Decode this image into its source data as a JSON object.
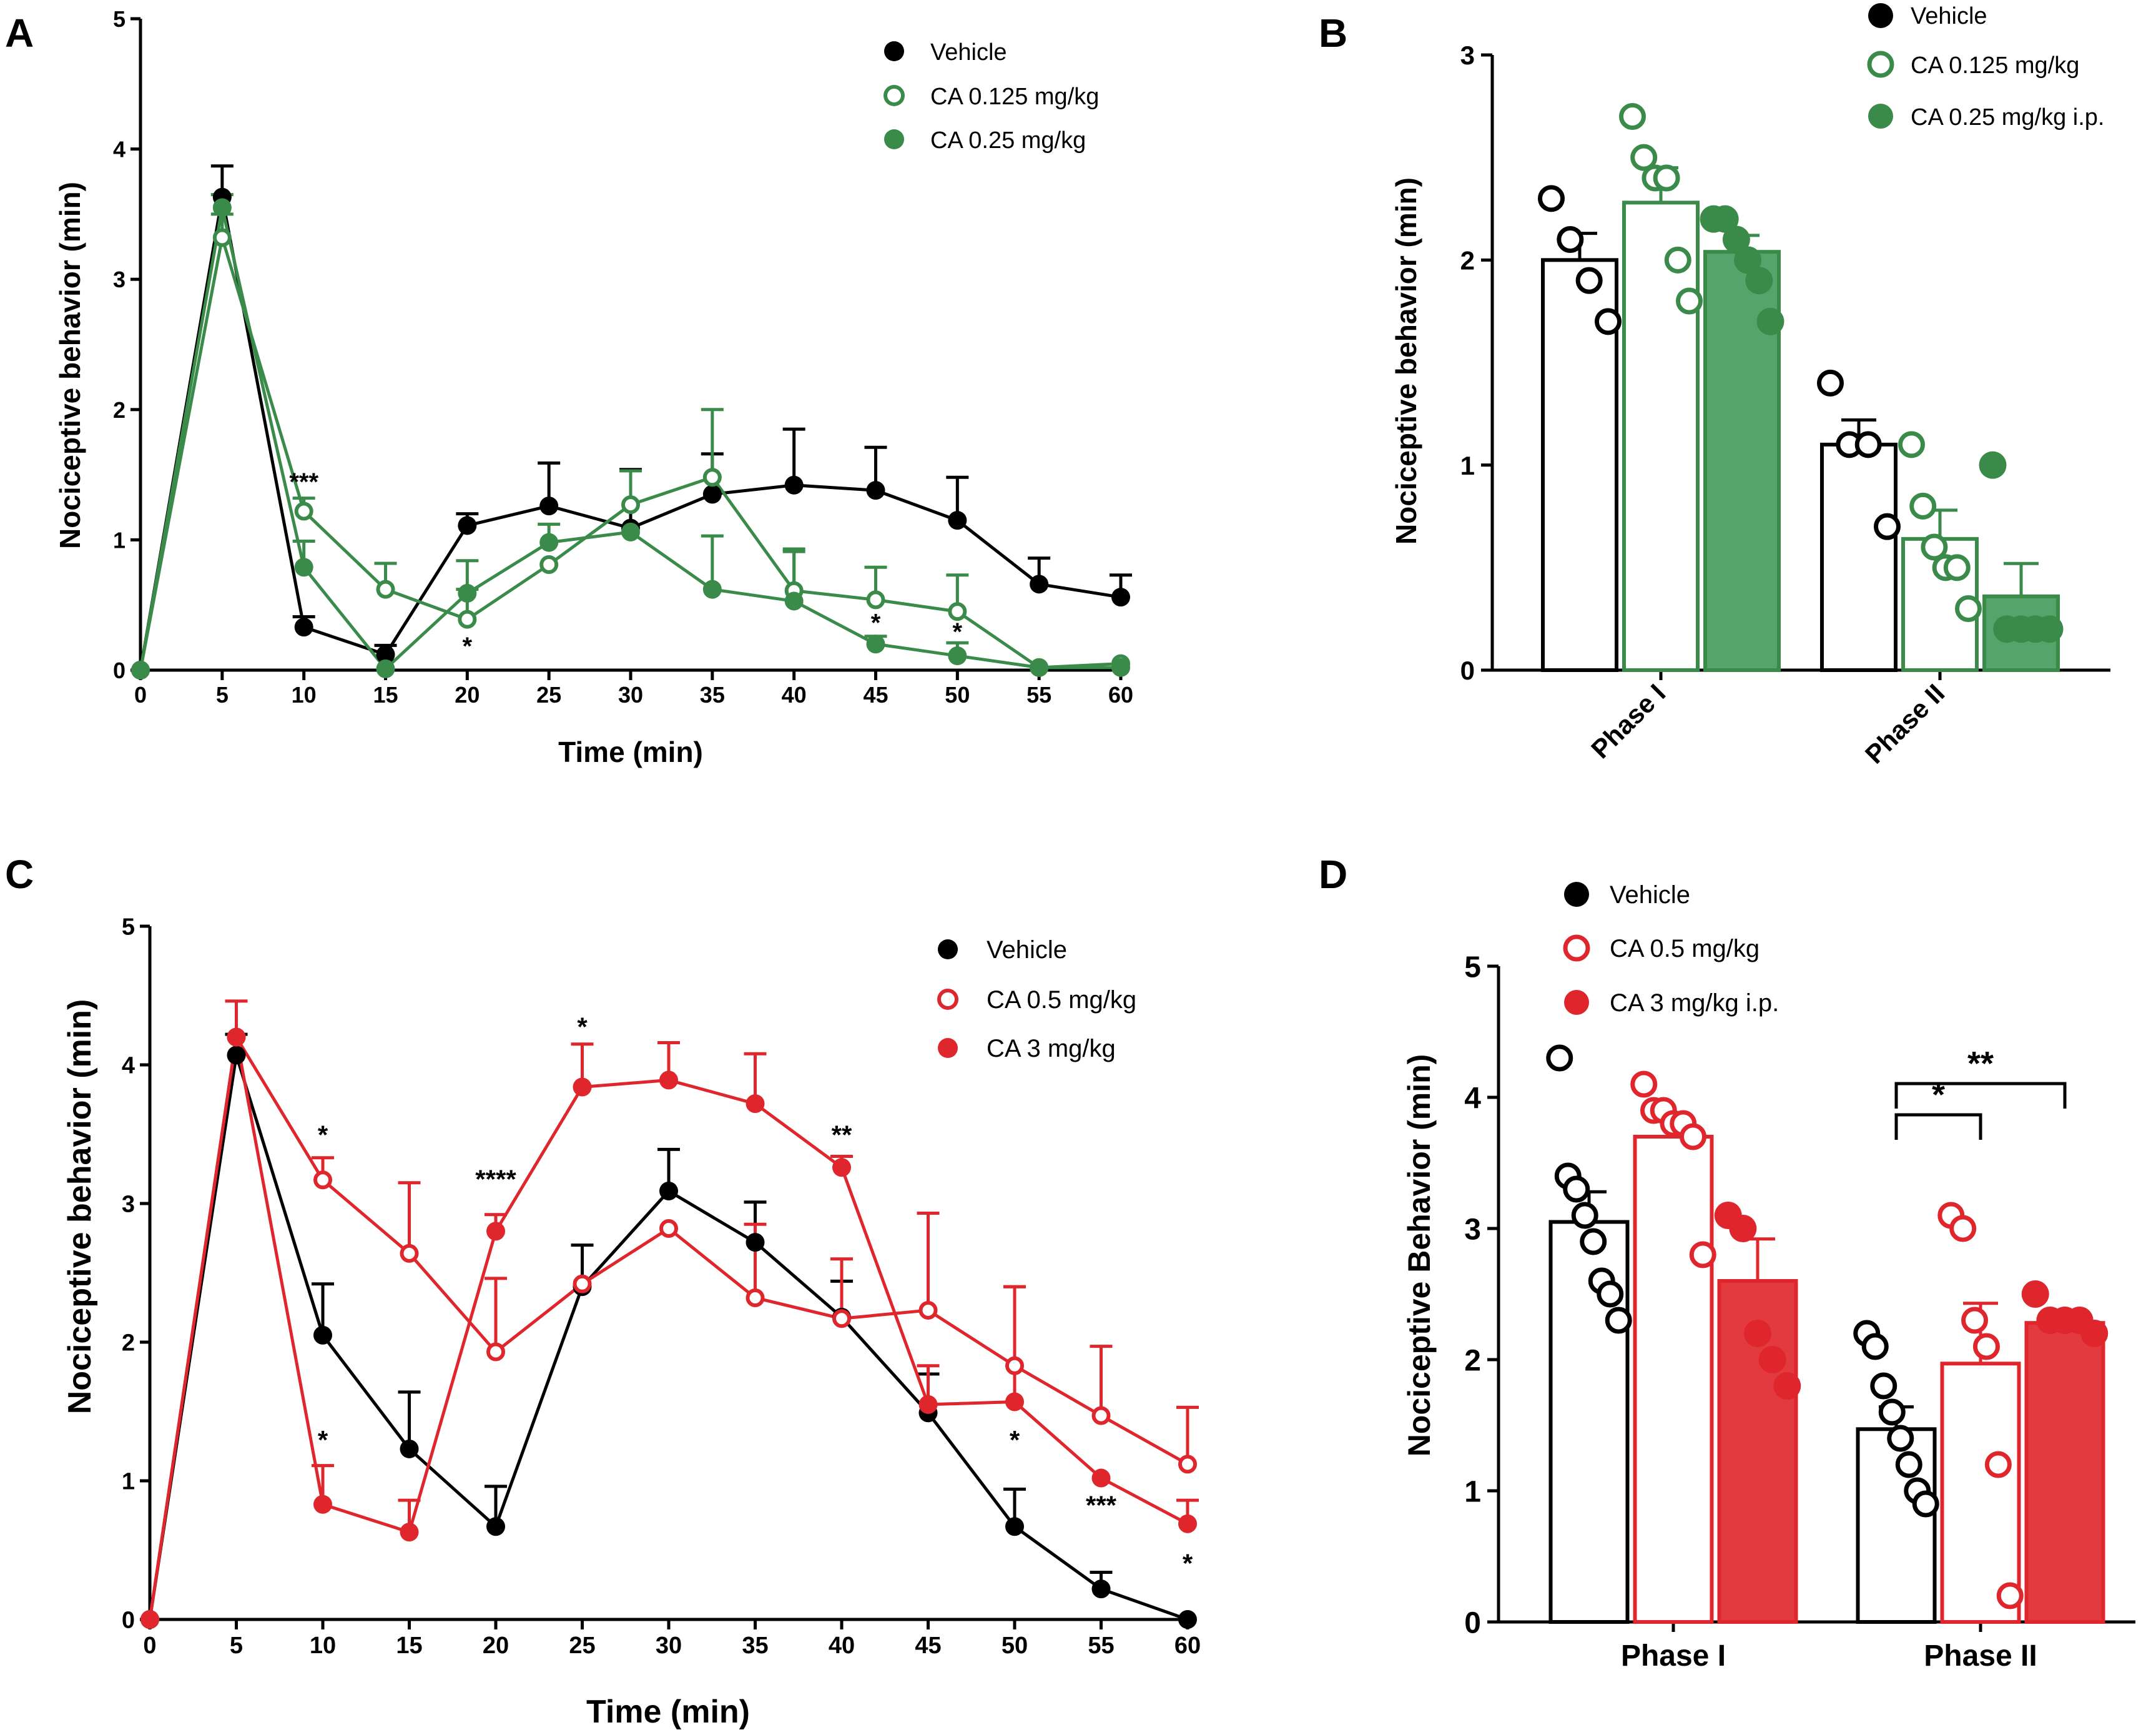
{
  "colors": {
    "black": "#000000",
    "green": "#3a8a4a",
    "green_fill": "#55a46c",
    "red": "#e0262d",
    "red_fill": "#e23a3f"
  },
  "panels": {
    "A": {
      "letter": "A"
    },
    "B": {
      "letter": "B"
    },
    "C": {
      "letter": "C"
    },
    "D": {
      "letter": "D"
    }
  },
  "chart_data": [
    {
      "panel": "A",
      "type": "line",
      "xlabel": "Time (min)",
      "ylabel": "Nociceptive behavior (min)",
      "x": [
        0,
        5,
        10,
        15,
        20,
        25,
        30,
        35,
        40,
        45,
        50,
        55,
        60
      ],
      "xlim": [
        0,
        60
      ],
      "ylim": [
        0,
        5
      ],
      "yticks": [
        0,
        1,
        2,
        3,
        4,
        5
      ],
      "legend_position": "top-right",
      "series": [
        {
          "name": "Vehicle",
          "style": "black-filled",
          "values": [
            0,
            3.63,
            0.33,
            0.12,
            1.11,
            1.26,
            1.09,
            1.35,
            1.42,
            1.38,
            1.15,
            0.66,
            0.56
          ],
          "err": [
            0,
            0.24,
            0.08,
            0.07,
            0.09,
            0.33,
            0.45,
            0.31,
            0.43,
            0.33,
            0.33,
            0.2,
            0.17
          ]
        },
        {
          "name": "CA 0.125 mg/kg",
          "style": "green-open",
          "values": [
            0,
            3.32,
            1.22,
            0.62,
            0.39,
            0.81,
            1.27,
            1.48,
            0.61,
            0.54,
            0.45,
            0.02,
            0.05
          ],
          "err": [
            0,
            0.18,
            0.1,
            0.2,
            0.23,
            0.0,
            0.26,
            0.52,
            0.3,
            0.25,
            0.28,
            0.0,
            0.0
          ]
        },
        {
          "name": "CA 0.25 mg/kg",
          "style": "green-filled",
          "values": [
            0,
            3.55,
            0.79,
            0.01,
            0.59,
            0.98,
            1.06,
            0.62,
            0.53,
            0.2,
            0.11,
            0.02,
            0.02
          ],
          "err": [
            0,
            0.1,
            0.2,
            0.0,
            0.25,
            0.14,
            0.0,
            0.41,
            0.4,
            0.06,
            0.1,
            0.0,
            0.0
          ]
        }
      ],
      "annotations": [
        {
          "text": "***",
          "x": 10,
          "y": 1.38
        },
        {
          "text": "*",
          "x": 20,
          "y": 0.12
        },
        {
          "text": "*",
          "x": 45,
          "y": 0.3
        },
        {
          "text": "*",
          "x": 50,
          "y": 0.23
        }
      ]
    },
    {
      "panel": "B",
      "type": "bar",
      "ylabel": "Nociceptive behavior (min)",
      "categories": [
        "Phase I",
        "Phase II"
      ],
      "ylim": [
        0,
        3
      ],
      "yticks": [
        0,
        1,
        2,
        3
      ],
      "legend_position": "top-right",
      "series": [
        {
          "name": "Vehicle",
          "style": "black-open-bar",
          "values": [
            2.0,
            1.1
          ],
          "err": [
            0.13,
            0.12
          ],
          "points": [
            [
              2.3,
              2.1,
              1.9,
              1.7
            ],
            [
              1.4,
              1.1,
              1.1,
              0.7
            ]
          ]
        },
        {
          "name": "CA 0.125 mg/kg",
          "style": "green-open-bar",
          "values": [
            2.28,
            0.64
          ],
          "err": [
            0.17,
            0.14
          ],
          "points": [
            [
              2.7,
              2.5,
              2.4,
              2.4,
              2.0,
              1.8
            ],
            [
              1.1,
              0.8,
              0.6,
              0.5,
              0.5,
              0.3
            ]
          ]
        },
        {
          "name": "CA 0.25 mg/kg i.p.",
          "style": "green-filled-bar",
          "values": [
            2.04,
            0.36
          ],
          "err": [
            0.08,
            0.16
          ],
          "points": [
            [
              2.2,
              2.2,
              2.1,
              2.0,
              1.9,
              1.7
            ],
            [
              1.0,
              0.2,
              0.2,
              0.2,
              0.2
            ]
          ]
        }
      ]
    },
    {
      "panel": "C",
      "type": "line",
      "xlabel": "Time (min)",
      "ylabel": "Nociceptive behavior (min)",
      "x": [
        0,
        5,
        10,
        15,
        20,
        25,
        30,
        35,
        40,
        45,
        50,
        55,
        60
      ],
      "xlim": [
        0,
        60
      ],
      "ylim": [
        0,
        5
      ],
      "yticks": [
        0,
        1,
        2,
        3,
        4,
        5
      ],
      "legend_position": "top-right",
      "series": [
        {
          "name": "Vehicle",
          "style": "black-filled",
          "values": [
            0,
            4.07,
            2.05,
            1.23,
            0.67,
            2.4,
            3.09,
            2.72,
            2.18,
            1.49,
            0.67,
            0.22,
            0.0
          ],
          "err": [
            0,
            0.15,
            0.37,
            0.41,
            0.29,
            0.3,
            0.3,
            0.29,
            0.26,
            0.28,
            0.27,
            0.12,
            0.0
          ]
        },
        {
          "name": "CA 0.5 mg/kg",
          "style": "red-open",
          "values": [
            0,
            4.2,
            3.17,
            2.64,
            1.93,
            2.42,
            2.82,
            2.32,
            2.17,
            2.23,
            1.83,
            1.47,
            1.12
          ],
          "err": [
            0,
            0.26,
            0.16,
            0.51,
            0.53,
            0.0,
            0.0,
            0.53,
            0.43,
            0.7,
            0.57,
            0.5,
            0.41
          ]
        },
        {
          "name": "CA 3 mg/kg",
          "style": "red-filled",
          "values": [
            0,
            4.2,
            0.83,
            0.63,
            2.8,
            3.84,
            3.89,
            3.72,
            3.26,
            1.55,
            1.57,
            1.02,
            0.69
          ],
          "err": [
            0,
            0.0,
            0.28,
            0.23,
            0.12,
            0.31,
            0.27,
            0.36,
            0.08,
            0.28,
            0.83,
            0.0,
            0.17
          ]
        }
      ],
      "annotations": [
        {
          "text": "*",
          "x": 10,
          "y": 3.43
        },
        {
          "text": "*",
          "x": 10,
          "y": 1.23
        },
        {
          "text": "****",
          "x": 20,
          "y": 3.11
        },
        {
          "text": "*",
          "x": 25,
          "y": 4.21
        },
        {
          "text": "**",
          "x": 40,
          "y": 3.43
        },
        {
          "text": "*",
          "x": 50,
          "y": 1.23
        },
        {
          "text": "***",
          "x": 55,
          "y": 0.76
        },
        {
          "text": "*",
          "x": 60,
          "y": 0.34
        }
      ]
    },
    {
      "panel": "D",
      "type": "bar",
      "ylabel": "Nociceptive Behavior (min)",
      "categories": [
        "Phase I",
        "Phase II"
      ],
      "ylim": [
        0,
        5
      ],
      "yticks": [
        0,
        1,
        2,
        3,
        4,
        5
      ],
      "legend_position": "top-left",
      "series": [
        {
          "name": "Vehicle",
          "style": "black-open-bar",
          "values": [
            3.05,
            1.47
          ],
          "err": [
            0.23,
            0.17
          ],
          "points": [
            [
              4.3,
              3.4,
              3.3,
              3.1,
              2.9,
              2.6,
              2.5,
              2.3
            ],
            [
              2.2,
              2.1,
              1.8,
              1.6,
              1.4,
              1.2,
              1.0,
              0.9
            ]
          ]
        },
        {
          "name": "CA 0.5 mg/kg",
          "style": "red-open-bar",
          "values": [
            3.7,
            1.97
          ],
          "err": [
            0.13,
            0.46
          ],
          "points": [
            [
              4.1,
              3.9,
              3.9,
              3.8,
              3.8,
              3.7,
              2.8
            ],
            [
              3.1,
              3.0,
              2.3,
              2.1,
              1.2,
              0.2
            ]
          ]
        },
        {
          "name": "CA 3 mg/kg i.p.",
          "style": "red-filled-bar",
          "values": [
            2.6,
            2.28
          ],
          "err": [
            0.32,
            0.07
          ],
          "points": [
            [
              3.1,
              3.0,
              2.2,
              2.0,
              1.8
            ],
            [
              2.5,
              2.3,
              2.3,
              2.3,
              2.2
            ]
          ]
        }
      ],
      "significance": [
        {
          "text": "*",
          "from": "Vehicle",
          "to": "CA 0.5 mg/kg",
          "category": "Phase II"
        },
        {
          "text": "**",
          "from": "Vehicle",
          "to": "CA 3 mg/kg i.p.",
          "category": "Phase II"
        }
      ]
    }
  ]
}
